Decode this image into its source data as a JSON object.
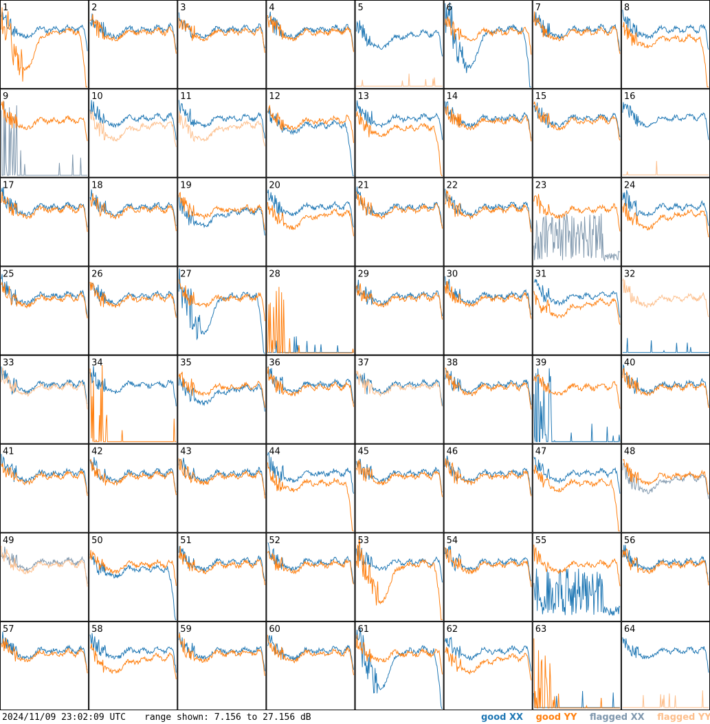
{
  "chart_data": {
    "type": "line",
    "panel_count": 64,
    "grid": {
      "columns": 8,
      "rows": 8
    },
    "panels": [
      {
        "label": "1",
        "xx": "good",
        "yy": "good",
        "xx_shape": "normal",
        "yy_shape": "dip"
      },
      {
        "label": "2",
        "xx": "good",
        "yy": "good",
        "xx_shape": "normal",
        "yy_shape": "normal"
      },
      {
        "label": "3",
        "xx": "good",
        "yy": "good",
        "xx_shape": "normal",
        "yy_shape": "normal"
      },
      {
        "label": "4",
        "xx": "good",
        "yy": "good",
        "xx_shape": "normal",
        "yy_shape": "normal"
      },
      {
        "label": "5",
        "xx": "good",
        "yy": "flagged",
        "xx_shape": "lowish",
        "yy_shape": "flat"
      },
      {
        "label": "6",
        "xx": "good",
        "yy": "good",
        "xx_shape": "dip",
        "yy_shape": "normal"
      },
      {
        "label": "7",
        "xx": "good",
        "yy": "good",
        "xx_shape": "normal",
        "yy_shape": "normal"
      },
      {
        "label": "8",
        "xx": "good",
        "yy": "good",
        "xx_shape": "normal",
        "yy_shape": "falloff"
      },
      {
        "label": "9",
        "xx": "flagged",
        "yy": "good",
        "xx_shape": "spikes",
        "yy_shape": "normal"
      },
      {
        "label": "10",
        "xx": "good",
        "yy": "flagged",
        "xx_shape": "normal",
        "yy_shape": "lowish"
      },
      {
        "label": "11",
        "xx": "good",
        "yy": "flagged",
        "xx_shape": "normal",
        "yy_shape": "lowish"
      },
      {
        "label": "12",
        "xx": "good",
        "yy": "good",
        "xx_shape": "falloff",
        "yy_shape": "normal"
      },
      {
        "label": "13",
        "xx": "good",
        "yy": "good",
        "xx_shape": "normal",
        "yy_shape": "falloff"
      },
      {
        "label": "14",
        "xx": "good",
        "yy": "good",
        "xx_shape": "normal",
        "yy_shape": "normal"
      },
      {
        "label": "15",
        "xx": "good",
        "yy": "good",
        "xx_shape": "normal",
        "yy_shape": "normal"
      },
      {
        "label": "16",
        "xx": "good",
        "yy": "flagged",
        "xx_shape": "normal",
        "yy_shape": "flat"
      },
      {
        "label": "17",
        "xx": "good",
        "yy": "good",
        "xx_shape": "normal",
        "yy_shape": "normal"
      },
      {
        "label": "18",
        "xx": "good",
        "yy": "good",
        "xx_shape": "normal",
        "yy_shape": "normal"
      },
      {
        "label": "19",
        "xx": "good",
        "yy": "good",
        "xx_shape": "lowish",
        "yy_shape": "normal"
      },
      {
        "label": "20",
        "xx": "good",
        "yy": "good",
        "xx_shape": "normal",
        "yy_shape": "lowish"
      },
      {
        "label": "21",
        "xx": "good",
        "yy": "good",
        "xx_shape": "normal",
        "yy_shape": "normal"
      },
      {
        "label": "22",
        "xx": "good",
        "yy": "good",
        "xx_shape": "normal",
        "yy_shape": "normal"
      },
      {
        "label": "23",
        "xx": "flagged",
        "yy": "good",
        "xx_shape": "noisy",
        "yy_shape": "normal"
      },
      {
        "label": "24",
        "xx": "good",
        "yy": "good",
        "xx_shape": "normal",
        "yy_shape": "lowish"
      },
      {
        "label": "25",
        "xx": "good",
        "yy": "good",
        "xx_shape": "normal",
        "yy_shape": "normal"
      },
      {
        "label": "26",
        "xx": "good",
        "yy": "good",
        "xx_shape": "normal",
        "yy_shape": "normal"
      },
      {
        "label": "27",
        "xx": "good",
        "yy": "good",
        "xx_shape": "dip",
        "yy_shape": "normal"
      },
      {
        "label": "28",
        "xx": "good",
        "yy": "good",
        "xx_shape": "flat",
        "yy_shape": "spikes"
      },
      {
        "label": "29",
        "xx": "good",
        "yy": "good",
        "xx_shape": "normal",
        "yy_shape": "normal"
      },
      {
        "label": "30",
        "xx": "good",
        "yy": "good",
        "xx_shape": "normal",
        "yy_shape": "normal"
      },
      {
        "label": "31",
        "xx": "good",
        "yy": "good",
        "xx_shape": "normal",
        "yy_shape": "lowish"
      },
      {
        "label": "32",
        "xx": "good",
        "yy": "flagged",
        "xx_shape": "flat",
        "yy_shape": "normal"
      },
      {
        "label": "33",
        "xx": "good",
        "yy": "flagged",
        "xx_shape": "normal",
        "yy_shape": "normal"
      },
      {
        "label": "34",
        "xx": "good",
        "yy": "good",
        "xx_shape": "normal",
        "yy_shape": "spikes"
      },
      {
        "label": "35",
        "xx": "good",
        "yy": "good",
        "xx_shape": "lowish",
        "yy_shape": "normal"
      },
      {
        "label": "36",
        "xx": "good",
        "yy": "good",
        "xx_shape": "normal",
        "yy_shape": "normal"
      },
      {
        "label": "37",
        "xx": "good",
        "yy": "flagged",
        "xx_shape": "normal",
        "yy_shape": "normal"
      },
      {
        "label": "38",
        "xx": "good",
        "yy": "good",
        "xx_shape": "normal",
        "yy_shape": "normal"
      },
      {
        "label": "39",
        "xx": "good",
        "yy": "good",
        "xx_shape": "spikes",
        "yy_shape": "normal"
      },
      {
        "label": "40",
        "xx": "good",
        "yy": "good",
        "xx_shape": "normal",
        "yy_shape": "normal"
      },
      {
        "label": "41",
        "xx": "good",
        "yy": "good",
        "xx_shape": "normal",
        "yy_shape": "normal"
      },
      {
        "label": "42",
        "xx": "good",
        "yy": "good",
        "xx_shape": "normal",
        "yy_shape": "normal"
      },
      {
        "label": "43",
        "xx": "good",
        "yy": "good",
        "xx_shape": "normal",
        "yy_shape": "normal"
      },
      {
        "label": "44",
        "xx": "good",
        "yy": "good",
        "xx_shape": "normal",
        "yy_shape": "falloff"
      },
      {
        "label": "45",
        "xx": "good",
        "yy": "good",
        "xx_shape": "normal",
        "yy_shape": "normal"
      },
      {
        "label": "46",
        "xx": "good",
        "yy": "good",
        "xx_shape": "normal",
        "yy_shape": "normal"
      },
      {
        "label": "47",
        "xx": "good",
        "yy": "good",
        "xx_shape": "normal",
        "yy_shape": "falloff"
      },
      {
        "label": "48",
        "xx": "flagged",
        "yy": "good",
        "xx_shape": "lowish",
        "yy_shape": "normal"
      },
      {
        "label": "49",
        "xx": "flagged",
        "yy": "flagged",
        "xx_shape": "normal",
        "yy_shape": "normal"
      },
      {
        "label": "50",
        "xx": "good",
        "yy": "good",
        "xx_shape": "falloff",
        "yy_shape": "normal"
      },
      {
        "label": "51",
        "xx": "good",
        "yy": "good",
        "xx_shape": "normal",
        "yy_shape": "normal"
      },
      {
        "label": "52",
        "xx": "good",
        "yy": "good",
        "xx_shape": "normal",
        "yy_shape": "normal"
      },
      {
        "label": "53",
        "xx": "good",
        "yy": "good",
        "xx_shape": "normal",
        "yy_shape": "dip"
      },
      {
        "label": "54",
        "xx": "good",
        "yy": "good",
        "xx_shape": "normal",
        "yy_shape": "normal"
      },
      {
        "label": "55",
        "xx": "good",
        "yy": "good",
        "xx_shape": "noisy",
        "yy_shape": "normal"
      },
      {
        "label": "56",
        "xx": "good",
        "yy": "good",
        "xx_shape": "normal",
        "yy_shape": "normal"
      },
      {
        "label": "57",
        "xx": "good",
        "yy": "good",
        "xx_shape": "normal",
        "yy_shape": "normal"
      },
      {
        "label": "58",
        "xx": "good",
        "yy": "good",
        "xx_shape": "normal",
        "yy_shape": "lowish"
      },
      {
        "label": "59",
        "xx": "good",
        "yy": "good",
        "xx_shape": "normal",
        "yy_shape": "normal"
      },
      {
        "label": "60",
        "xx": "good",
        "yy": "good",
        "xx_shape": "normal",
        "yy_shape": "normal"
      },
      {
        "label": "61",
        "xx": "good",
        "yy": "good",
        "xx_shape": "dip",
        "yy_shape": "normal"
      },
      {
        "label": "62",
        "xx": "good",
        "yy": "good",
        "xx_shape": "normal",
        "yy_shape": "lowish"
      },
      {
        "label": "63",
        "xx": "good",
        "yy": "good",
        "xx_shape": "flat",
        "yy_shape": "spikes"
      },
      {
        "label": "64",
        "xx": "good",
        "yy": "flagged",
        "xx_shape": "normal",
        "yy_shape": "flat"
      }
    ],
    "legend": [
      "good XX",
      "good YY",
      "flagged XX",
      "flagged YY"
    ],
    "legend_placement": "bottom-right",
    "colors": {
      "good_xx": "#1f77b4",
      "good_yy": "#ff7f0e",
      "flagged_xx": "#7f97ad",
      "flagged_yy": "#fdbf8c"
    }
  },
  "footer": {
    "timestamp": "2024/11/09 23:02:09 UTC",
    "range_text": "range shown: 7.156 to 27.156 dB"
  }
}
